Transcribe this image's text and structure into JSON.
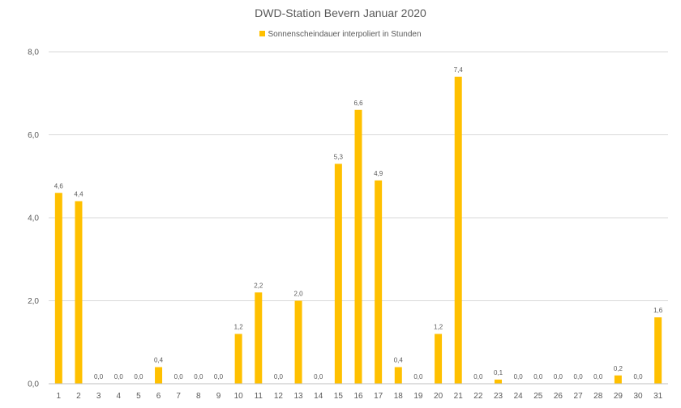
{
  "colors": {
    "bar": "#FFC000",
    "gridline": "#D9D9D9",
    "axis_line": "#BFBFBF",
    "text": "#595959"
  },
  "chart_data": {
    "type": "bar",
    "title": "DWD-Station Bevern Januar 2020",
    "legend_position": "top",
    "grid": true,
    "categories": [
      "1",
      "2",
      "3",
      "4",
      "5",
      "6",
      "7",
      "8",
      "9",
      "10",
      "11",
      "12",
      "13",
      "14",
      "15",
      "16",
      "17",
      "18",
      "19",
      "20",
      "21",
      "22",
      "23",
      "24",
      "25",
      "26",
      "27",
      "28",
      "29",
      "30",
      "31"
    ],
    "series": [
      {
        "name": "Sonnenscheindauer interpoliert in Stunden",
        "values": [
          4.6,
          4.4,
          0.0,
          0.0,
          0.0,
          0.4,
          0.0,
          0.0,
          0.0,
          1.2,
          2.2,
          0.0,
          2.0,
          0.0,
          5.3,
          6.6,
          4.9,
          0.4,
          0.0,
          1.2,
          7.4,
          0.0,
          0.1,
          0.0,
          0.0,
          0.0,
          0.0,
          0.0,
          0.2,
          0.0,
          1.6
        ],
        "labels": [
          "4,6",
          "4,4",
          "0,0",
          "0,0",
          "0,0",
          "0,4",
          "0,0",
          "0,0",
          "0,0",
          "1,2",
          "2,2",
          "0,0",
          "2,0",
          "0,0",
          "5,3",
          "6,6",
          "4,9",
          "0,4",
          "0,0",
          "1,2",
          "7,4",
          "0,0",
          "0,1",
          "0,0",
          "0,0",
          "0,0",
          "0,0",
          "0,0",
          "0,2",
          "0,0",
          "1,6"
        ]
      }
    ],
    "ylim": [
      0,
      8
    ],
    "yticks": [
      0,
      2,
      4,
      6,
      8
    ],
    "ytick_labels": [
      "0,0",
      "2,0",
      "4,0",
      "6,0",
      "8,0"
    ]
  }
}
